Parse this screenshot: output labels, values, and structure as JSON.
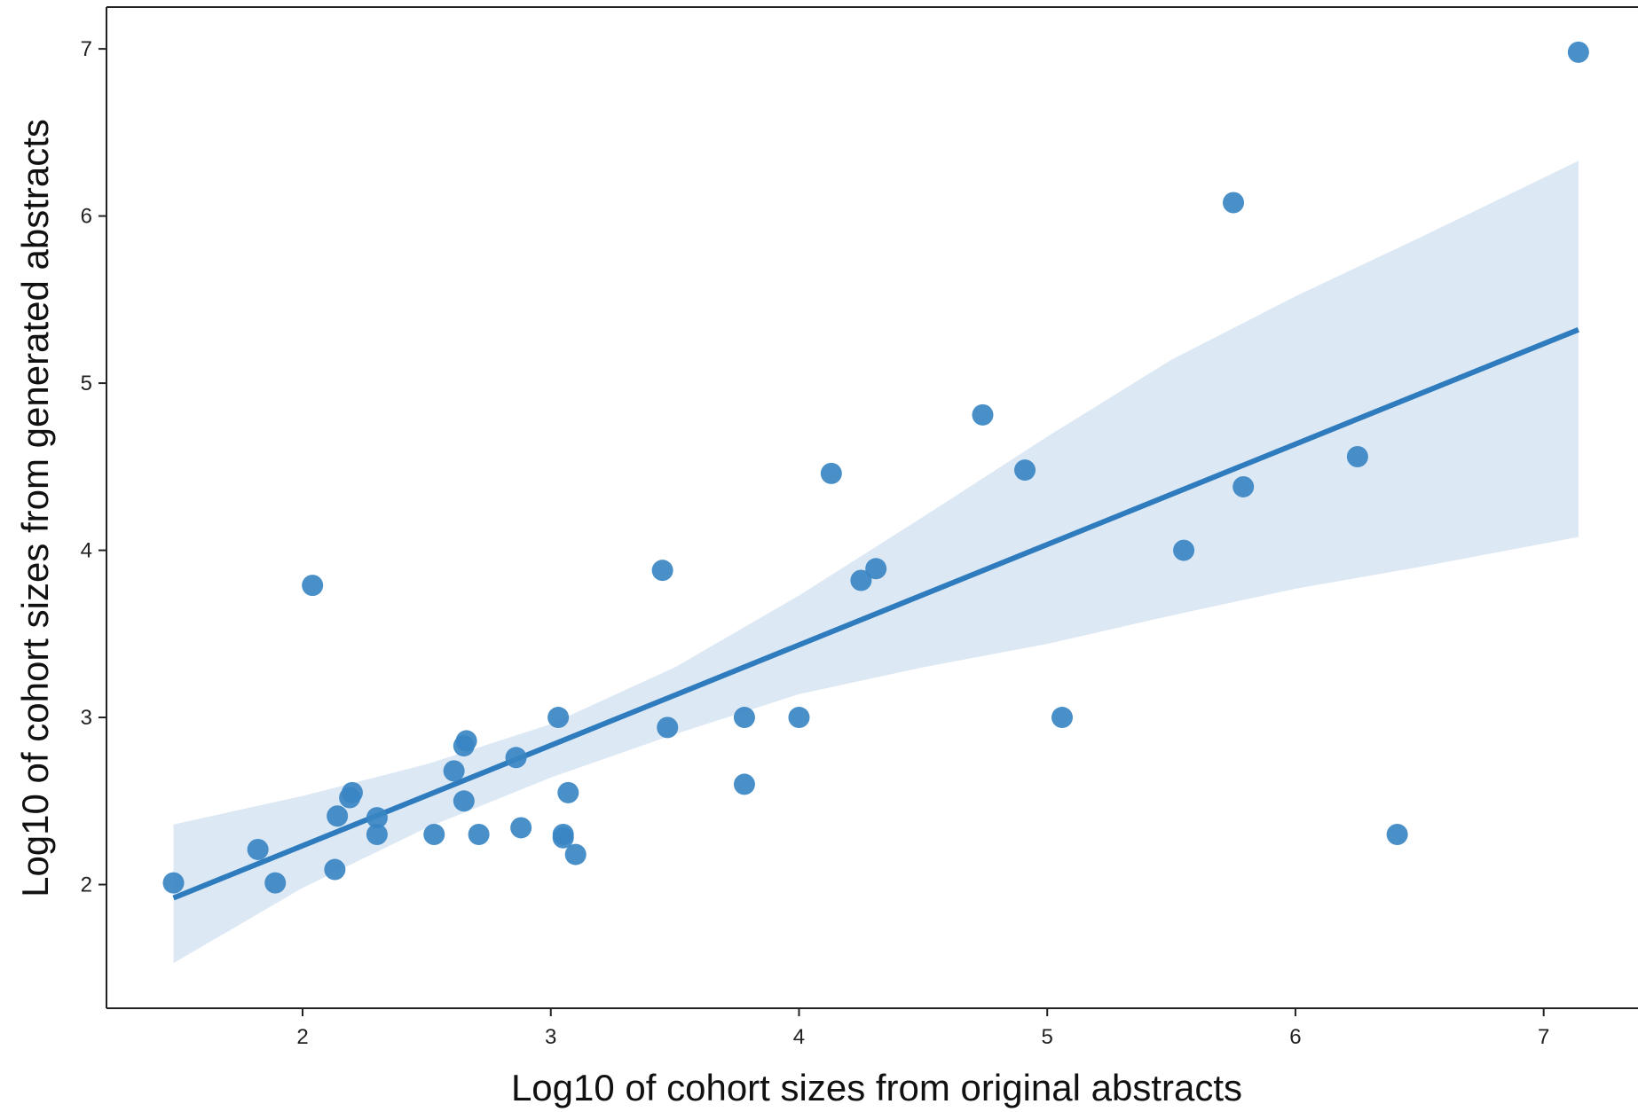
{
  "chart_data": {
    "type": "scatter",
    "title": "",
    "xlabel": "Log10 of cohort sizes from original abstracts",
    "ylabel": "Log10 of cohort sizes from generated abstracts",
    "xlim": [
      1.21,
      7.38
    ],
    "ylim": [
      1.26,
      7.25
    ],
    "x_ticks": [
      2,
      3,
      4,
      5,
      6,
      7
    ],
    "y_ticks": [
      2,
      3,
      4,
      5,
      6,
      7
    ],
    "grid": false,
    "legend": "none",
    "colors": {
      "points": "#3a86c3",
      "line": "#2e7bbd",
      "band": "#dce8f4",
      "axes": "#222222"
    },
    "points": [
      {
        "x": 1.48,
        "y": 2.01
      },
      {
        "x": 1.82,
        "y": 2.21
      },
      {
        "x": 1.89,
        "y": 2.01
      },
      {
        "x": 2.04,
        "y": 3.79
      },
      {
        "x": 2.13,
        "y": 2.09
      },
      {
        "x": 2.14,
        "y": 2.41
      },
      {
        "x": 2.19,
        "y": 2.52
      },
      {
        "x": 2.2,
        "y": 2.55
      },
      {
        "x": 2.3,
        "y": 2.4
      },
      {
        "x": 2.3,
        "y": 2.3
      },
      {
        "x": 2.53,
        "y": 2.3
      },
      {
        "x": 2.61,
        "y": 2.68
      },
      {
        "x": 2.65,
        "y": 2.83
      },
      {
        "x": 2.66,
        "y": 2.86
      },
      {
        "x": 2.65,
        "y": 2.5
      },
      {
        "x": 2.71,
        "y": 2.3
      },
      {
        "x": 2.86,
        "y": 2.76
      },
      {
        "x": 2.88,
        "y": 2.34
      },
      {
        "x": 3.03,
        "y": 3.0
      },
      {
        "x": 3.05,
        "y": 2.3
      },
      {
        "x": 3.05,
        "y": 2.28
      },
      {
        "x": 3.07,
        "y": 2.55
      },
      {
        "x": 3.1,
        "y": 2.18
      },
      {
        "x": 3.45,
        "y": 3.88
      },
      {
        "x": 3.47,
        "y": 2.94
      },
      {
        "x": 3.78,
        "y": 3.0
      },
      {
        "x": 3.78,
        "y": 2.6
      },
      {
        "x": 4.0,
        "y": 3.0
      },
      {
        "x": 4.13,
        "y": 4.46
      },
      {
        "x": 4.25,
        "y": 3.82
      },
      {
        "x": 4.31,
        "y": 3.89
      },
      {
        "x": 4.74,
        "y": 4.81
      },
      {
        "x": 4.91,
        "y": 4.48
      },
      {
        "x": 5.06,
        "y": 3.0
      },
      {
        "x": 5.55,
        "y": 4.0
      },
      {
        "x": 5.75,
        "y": 6.08
      },
      {
        "x": 5.79,
        "y": 4.38
      },
      {
        "x": 6.25,
        "y": 4.56
      },
      {
        "x": 6.41,
        "y": 2.3
      },
      {
        "x": 7.14,
        "y": 6.98
      }
    ],
    "regression_line": [
      {
        "x": 1.48,
        "y": 1.92
      },
      {
        "x": 7.14,
        "y": 5.32
      }
    ],
    "confidence_band": {
      "x": [
        1.48,
        2.0,
        2.5,
        3.0,
        3.5,
        4.0,
        4.5,
        5.0,
        5.5,
        6.0,
        6.5,
        7.14
      ],
      "upper": [
        2.36,
        2.53,
        2.72,
        2.96,
        3.3,
        3.73,
        4.2,
        4.68,
        5.14,
        5.52,
        5.87,
        6.33
      ],
      "lower": [
        1.53,
        1.98,
        2.34,
        2.64,
        2.9,
        3.14,
        3.3,
        3.44,
        3.61,
        3.77,
        3.9,
        4.08
      ]
    }
  }
}
